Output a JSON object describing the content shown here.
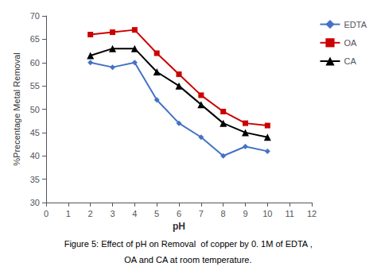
{
  "chart_data": {
    "type": "line",
    "x": [
      2,
      3,
      4,
      5,
      6,
      7,
      8,
      9,
      10
    ],
    "series": [
      {
        "name": "EDTA",
        "color": "#4472c4",
        "marker": "diamond",
        "values": [
          60.0,
          59.0,
          60.0,
          52.0,
          47.0,
          44.0,
          40.0,
          42.0,
          41.0
        ]
      },
      {
        "name": "OA",
        "color": "#cc0000",
        "marker": "square",
        "values": [
          66.0,
          66.5,
          67.0,
          62.0,
          57.5,
          53.0,
          49.5,
          47.0,
          46.5
        ]
      },
      {
        "name": "CA",
        "color": "#000000",
        "marker": "triangle",
        "values": [
          61.5,
          63.0,
          63.0,
          58.0,
          55.0,
          51.0,
          47.0,
          45.0,
          44.0
        ]
      }
    ],
    "xlabel": "pH",
    "ylabel": "%Precentage Metal Removal",
    "xlim": [
      0,
      12
    ],
    "ylim": [
      30,
      70
    ],
    "xticks": [
      0,
      1,
      2,
      3,
      4,
      5,
      6,
      7,
      8,
      9,
      10,
      11,
      12
    ],
    "yticks": [
      30,
      35,
      40,
      45,
      50,
      55,
      60,
      65,
      70
    ],
    "annotations": [
      "Figure 5: Effect of pH on Removal  of copper by 0. 1M of EDTA ,",
      "OA and CA at room temperature."
    ],
    "legend": "right",
    "grid": false
  }
}
